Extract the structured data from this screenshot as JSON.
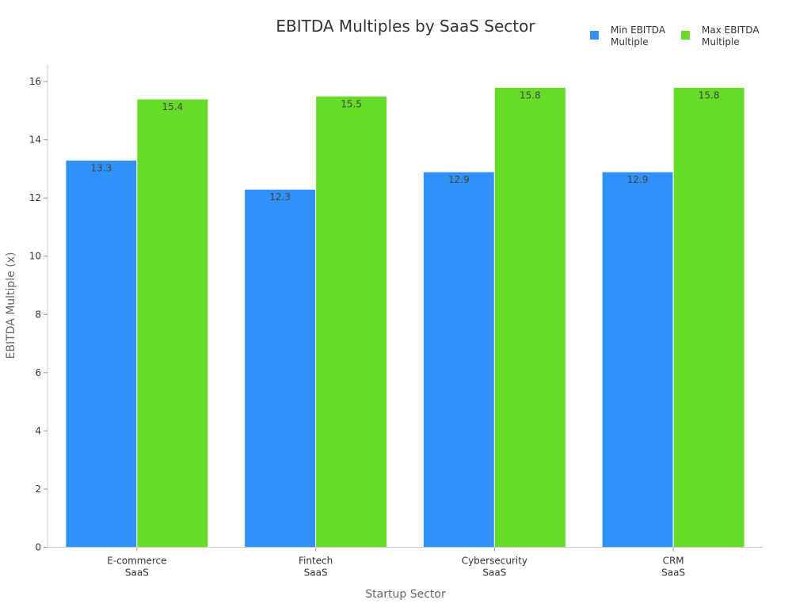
{
  "chart_data": {
    "type": "bar",
    "title": "EBITDA Multiples by SaaS Sector",
    "xlabel": "Startup Sector",
    "ylabel": "EBITDA Multiple (x)",
    "categories": [
      [
        "E-commerce",
        "SaaS"
      ],
      [
        "Fintech",
        "SaaS"
      ],
      [
        "Cybersecurity",
        "SaaS"
      ],
      [
        "CRM",
        "SaaS"
      ]
    ],
    "series": [
      {
        "name": "Min EBITDA Multiple",
        "legend_lines": [
          "Min EBITDA",
          "Multiple"
        ],
        "color": "#3092f8",
        "values": [
          13.3,
          12.3,
          12.9,
          12.9
        ]
      },
      {
        "name": "Max EBITDA Multiple",
        "legend_lines": [
          "Max EBITDA",
          "Multiple"
        ],
        "color": "#66dc28",
        "values": [
          15.4,
          15.5,
          15.8,
          15.8
        ]
      }
    ],
    "ylim": [
      0,
      16.6
    ],
    "yticks": [
      0,
      2,
      4,
      6,
      8,
      10,
      12,
      14,
      16
    ],
    "grid": false,
    "legend_placement": "top-right",
    "data_labels": true
  }
}
